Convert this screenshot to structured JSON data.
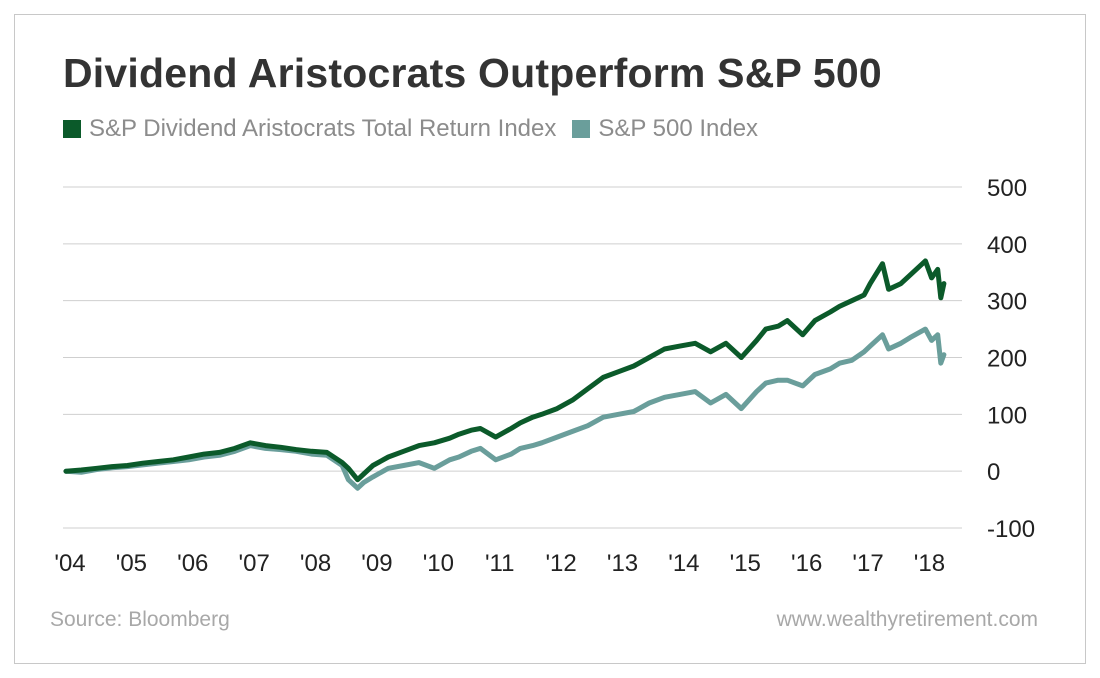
{
  "title": "Dividend Aristocrats Outperform S&P 500",
  "source": "Source: Bloomberg",
  "website": "www.wealthyretirement.com",
  "colors": {
    "aristocrats": "#0b5a2a",
    "sp500": "#6a9e9b",
    "grid": "#cfcfcf"
  },
  "chart_data": {
    "type": "line",
    "title": "Dividend Aristocrats Outperform S&P 500",
    "xlabel": "",
    "ylabel": "",
    "ylim": [
      -100,
      500
    ],
    "yticks": [
      "500",
      "400",
      "300",
      "200",
      "100",
      "0",
      "-100"
    ],
    "yticks_values": [
      500,
      400,
      300,
      200,
      100,
      0,
      -100
    ],
    "xticks": [
      "'04",
      "'05",
      "'06",
      "'07",
      "'08",
      "'09",
      "'10",
      "'11",
      "'12",
      "'13",
      "'14",
      "'15",
      "'16",
      "'17",
      "'18"
    ],
    "xticks_values": [
      2004,
      2005,
      2006,
      2007,
      2008,
      2009,
      2010,
      2011,
      2012,
      2013,
      2014,
      2015,
      2016,
      2017,
      2018
    ],
    "xlim": [
      2004,
      2018.4
    ],
    "grid": true,
    "legend_position": "top-left",
    "series": [
      {
        "name": "S&P Dividend Aristocrats Total Return Index",
        "x": [
          2004.0,
          2004.25,
          2004.5,
          2004.75,
          2005.0,
          2005.25,
          2005.5,
          2005.75,
          2006.0,
          2006.25,
          2006.5,
          2006.75,
          2007.0,
          2007.25,
          2007.5,
          2007.75,
          2008.0,
          2008.25,
          2008.5,
          2008.6,
          2008.75,
          2008.85,
          2009.0,
          2009.25,
          2009.5,
          2009.75,
          2010.0,
          2010.25,
          2010.4,
          2010.6,
          2010.75,
          2011.0,
          2011.25,
          2011.4,
          2011.6,
          2011.75,
          2012.0,
          2012.25,
          2012.5,
          2012.75,
          2013.0,
          2013.25,
          2013.5,
          2013.75,
          2014.0,
          2014.25,
          2014.5,
          2014.75,
          2015.0,
          2015.25,
          2015.4,
          2015.6,
          2015.75,
          2016.0,
          2016.2,
          2016.45,
          2016.6,
          2016.8,
          2017.0,
          2017.1,
          2017.3,
          2017.4,
          2017.6,
          2017.75,
          2018.0,
          2018.1,
          2018.2,
          2018.25,
          2018.3
        ],
        "values": [
          0,
          2,
          5,
          8,
          10,
          14,
          17,
          20,
          25,
          30,
          33,
          40,
          50,
          45,
          42,
          38,
          35,
          33,
          15,
          5,
          -15,
          -5,
          10,
          25,
          35,
          45,
          50,
          58,
          65,
          72,
          75,
          60,
          75,
          85,
          95,
          100,
          110,
          125,
          145,
          165,
          175,
          185,
          200,
          215,
          220,
          225,
          210,
          225,
          200,
          230,
          250,
          255,
          265,
          240,
          265,
          280,
          290,
          300,
          310,
          330,
          365,
          320,
          330,
          345,
          370,
          340,
          355,
          305,
          330
        ]
      },
      {
        "name": "S&P 500 Index",
        "x": [
          2004.0,
          2004.25,
          2004.5,
          2004.75,
          2005.0,
          2005.25,
          2005.5,
          2005.75,
          2006.0,
          2006.25,
          2006.5,
          2006.75,
          2007.0,
          2007.25,
          2007.5,
          2007.75,
          2008.0,
          2008.25,
          2008.5,
          2008.6,
          2008.75,
          2008.85,
          2009.0,
          2009.25,
          2009.5,
          2009.75,
          2010.0,
          2010.25,
          2010.4,
          2010.6,
          2010.75,
          2011.0,
          2011.25,
          2011.4,
          2011.6,
          2011.75,
          2012.0,
          2012.25,
          2012.5,
          2012.75,
          2013.0,
          2013.25,
          2013.5,
          2013.75,
          2014.0,
          2014.25,
          2014.5,
          2014.75,
          2015.0,
          2015.25,
          2015.4,
          2015.6,
          2015.75,
          2016.0,
          2016.2,
          2016.45,
          2016.6,
          2016.8,
          2017.0,
          2017.1,
          2017.3,
          2017.4,
          2017.6,
          2017.75,
          2018.0,
          2018.1,
          2018.2,
          2018.25,
          2018.3
        ],
        "values": [
          0,
          -2,
          3,
          6,
          8,
          11,
          14,
          17,
          20,
          25,
          28,
          35,
          45,
          40,
          38,
          35,
          30,
          28,
          10,
          -15,
          -30,
          -20,
          -10,
          5,
          10,
          15,
          5,
          20,
          25,
          35,
          40,
          20,
          30,
          40,
          45,
          50,
          60,
          70,
          80,
          95,
          100,
          105,
          120,
          130,
          135,
          140,
          120,
          135,
          110,
          140,
          155,
          160,
          160,
          150,
          170,
          180,
          190,
          195,
          210,
          220,
          240,
          215,
          225,
          235,
          250,
          230,
          240,
          190,
          205
        ]
      }
    ]
  }
}
